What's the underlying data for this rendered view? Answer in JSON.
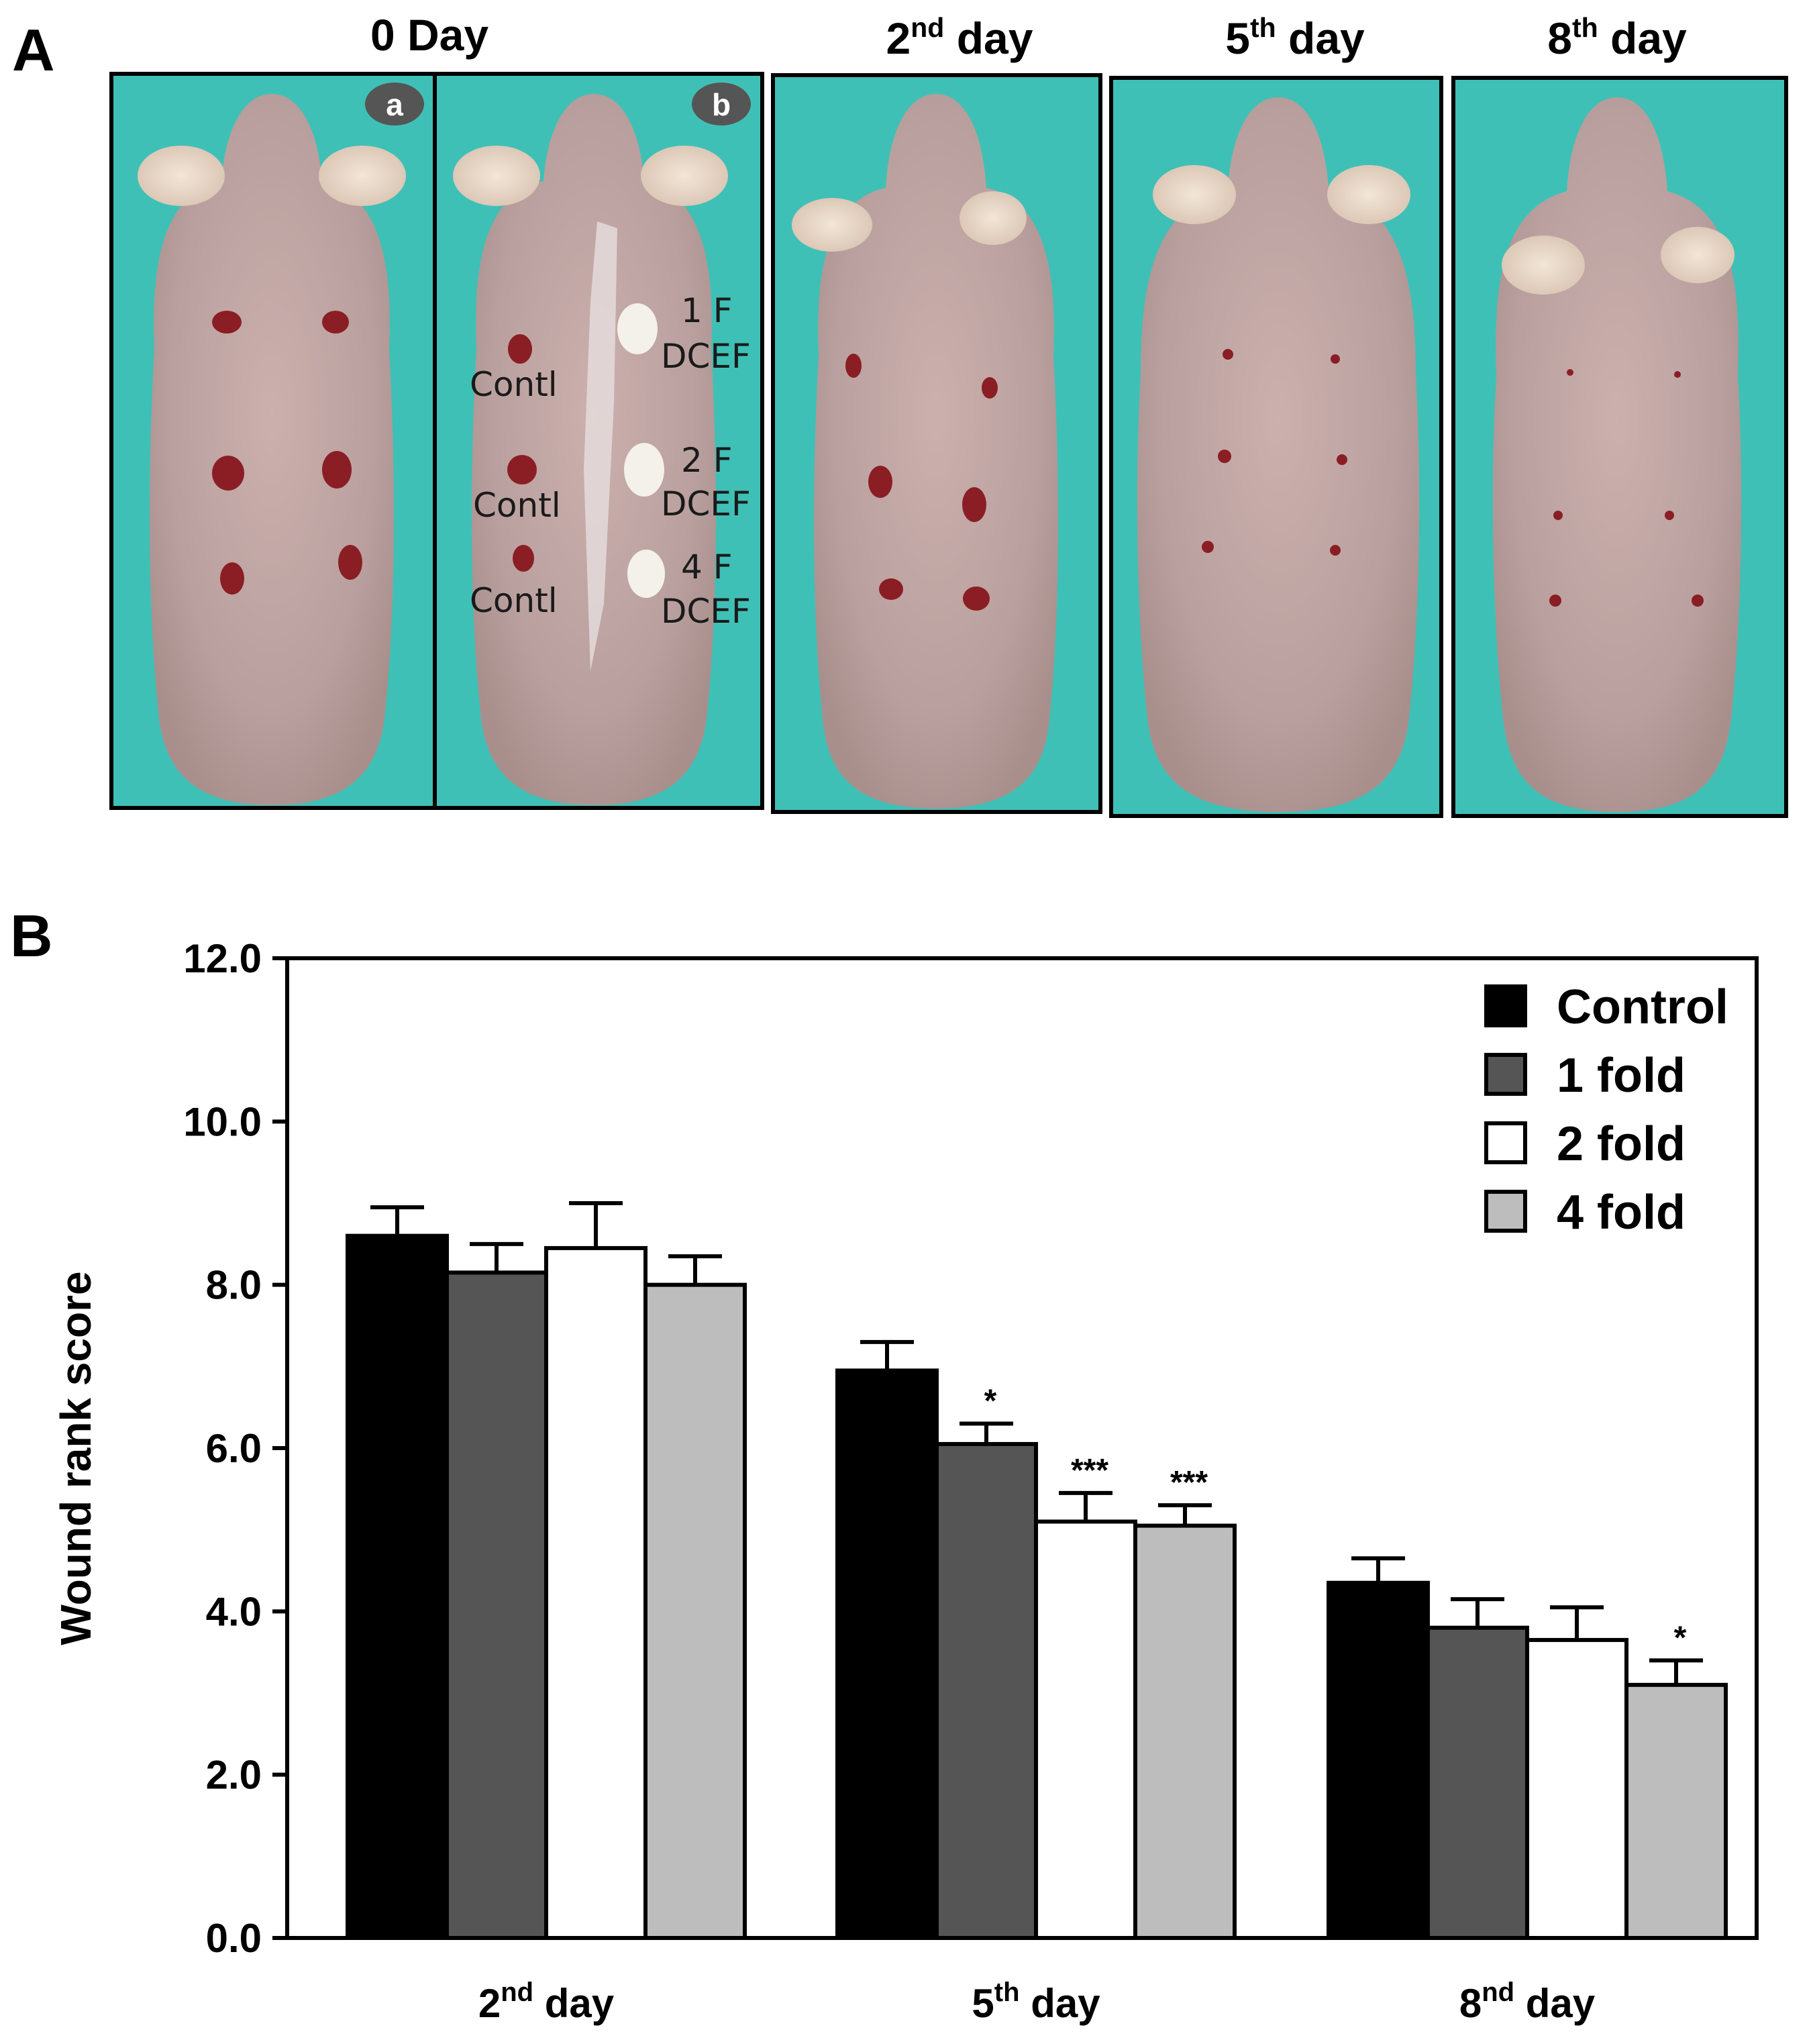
{
  "panel_a": {
    "letter": "A",
    "titles": {
      "day0": "0 Day",
      "day2": "2nd day",
      "day5": "5th day",
      "day8": "8th day"
    },
    "badges": {
      "a": "a",
      "b": "b"
    },
    "wound_labels": {
      "contl_1": "Contl",
      "contl_2": "Contl",
      "contl_3": "Contl",
      "f1_top": "1 F",
      "f1_bottom": "DCEF",
      "f2_top": "2 F",
      "f2_bottom": "DCEF",
      "f4_top": "4 F",
      "f4_bottom": "DCEF"
    },
    "colors": {
      "background": "#3fc0b6",
      "skin": "#c8a8a4",
      "wound": "#8a1e24",
      "frame": "#000000"
    }
  },
  "panel_b": {
    "letter": "B"
  },
  "chart_data": {
    "type": "bar",
    "title": "",
    "xlabel": "",
    "ylabel": "Wound rank score",
    "ylim": [
      0,
      12
    ],
    "yticks": [
      "0.0",
      "2.0",
      "4.0",
      "6.0",
      "8.0",
      "10.0",
      "12.0"
    ],
    "grid": false,
    "legend_position": "top-right",
    "categories": [
      "2nd day",
      "5th day",
      "8nd day"
    ],
    "series": [
      {
        "name": "Control",
        "color": "#000000",
        "values": [
          8.6,
          6.95,
          4.35
        ],
        "errors": [
          0.35,
          0.35,
          0.3
        ],
        "significance": [
          "",
          "",
          ""
        ]
      },
      {
        "name": "1 fold",
        "color": "#555555",
        "values": [
          8.15,
          6.05,
          3.8
        ],
        "errors": [
          0.35,
          0.25,
          0.35
        ],
        "significance": [
          "",
          "*",
          ""
        ]
      },
      {
        "name": "2 fold",
        "color": "#ffffff",
        "values": [
          8.45,
          5.1,
          3.65
        ],
        "errors": [
          0.55,
          0.35,
          0.4
        ],
        "significance": [
          "",
          "***",
          ""
        ]
      },
      {
        "name": "4 fold",
        "color": "#bdbdbd",
        "values": [
          8.0,
          5.05,
          3.1
        ],
        "errors": [
          0.35,
          0.25,
          0.3
        ],
        "significance": [
          "",
          "***",
          "*"
        ]
      }
    ]
  }
}
